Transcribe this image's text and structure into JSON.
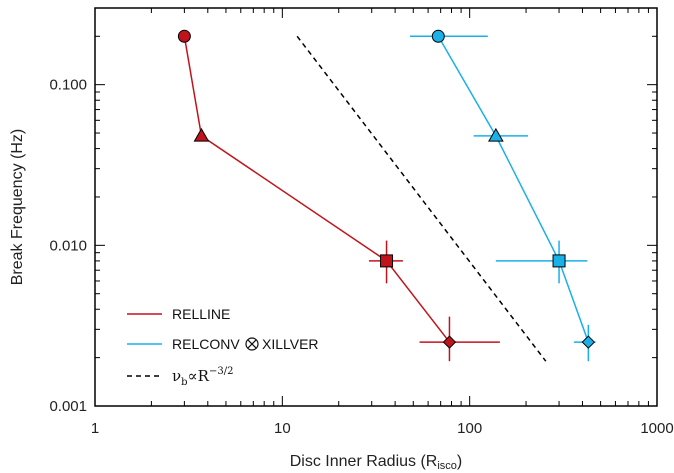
{
  "chart_data": {
    "type": "scatter",
    "xlabel": "Disc Inner Radius (R",
    "xlabel_sub": "isco",
    "xlabel_close": ")",
    "ylabel": "Break Frequency (Hz)",
    "xscale": "log",
    "yscale": "log",
    "xlim": [
      1,
      1000
    ],
    "ylim": [
      0.001,
      0.3
    ],
    "x_ticks": [
      {
        "value": 1,
        "label": "1"
      },
      {
        "value": 10,
        "label": "10"
      },
      {
        "value": 100,
        "label": "100"
      },
      {
        "value": 1000,
        "label": "1000"
      }
    ],
    "y_ticks": [
      {
        "value": 0.001,
        "label": "0.001"
      },
      {
        "value": 0.01,
        "label": "0.010"
      },
      {
        "value": 0.1,
        "label": "0.100"
      }
    ],
    "legend_position": "bottom-left",
    "series": [
      {
        "name": "RELLINE",
        "color": "#c0141c",
        "points": [
          {
            "x": 3.0,
            "y": 0.2,
            "marker": "circle",
            "xerr": [
              3.0,
              3.0
            ],
            "yerr": [
              0.2,
              0.2
            ]
          },
          {
            "x": 3.7,
            "y": 0.048,
            "marker": "triangle",
            "xerr": [
              3.7,
              3.7
            ],
            "yerr": [
              0.048,
              0.048
            ]
          },
          {
            "x": 36,
            "y": 0.008,
            "marker": "square",
            "xerr": [
              29,
              44
            ],
            "yerr": [
              0.0058,
              0.0107
            ]
          },
          {
            "x": 78,
            "y": 0.0025,
            "marker": "diamond",
            "xerr": [
              54,
              145
            ],
            "yerr": [
              0.0019,
              0.0036
            ]
          }
        ]
      },
      {
        "name": "RELCONV",
        "name_suffix": "XILLVER",
        "color": "#1ab0e8",
        "points": [
          {
            "x": 68,
            "y": 0.2,
            "marker": "circle",
            "xerr": [
              48,
              125
            ],
            "yerr": [
              0.2,
              0.2
            ]
          },
          {
            "x": 138,
            "y": 0.048,
            "marker": "triangle",
            "xerr": [
              105,
              205
            ],
            "yerr": [
              0.048,
              0.048
            ]
          },
          {
            "x": 300,
            "y": 0.008,
            "marker": "square",
            "xerr": [
              138,
              425
            ],
            "yerr": [
              0.0058,
              0.0107
            ]
          },
          {
            "x": 430,
            "y": 0.0025,
            "marker": "diamond",
            "xerr": [
              360,
              470
            ],
            "yerr": [
              0.0019,
              0.0032
            ]
          }
        ]
      }
    ],
    "reference_line": {
      "label_nu": "ν",
      "label_nu_sub": "b",
      "label_prop": "∝R",
      "label_exp": "−3/2",
      "style": "dashed",
      "color": "#000000",
      "x": [
        12,
        255
      ],
      "y": [
        0.2,
        0.0019
      ]
    }
  }
}
